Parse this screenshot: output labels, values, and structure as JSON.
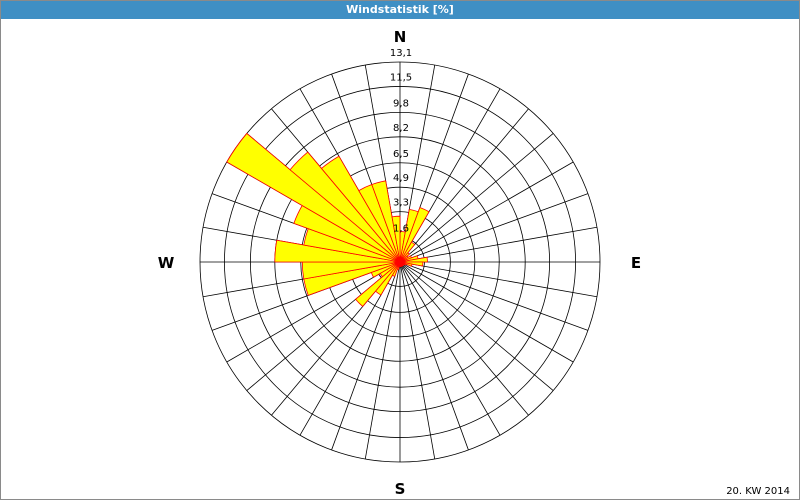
{
  "chart_data": {
    "type": "windrose",
    "title": "Windstatistik [%]",
    "footer": "20. KW 2014",
    "direction_labels": [
      "N",
      "E",
      "S",
      "W"
    ],
    "categories": [
      null,
      null,
      null,
      null,
      null,
      null,
      null,
      null,
      null,
      null,
      null,
      null,
      null,
      null,
      null,
      null,
      null,
      null,
      null,
      null,
      null,
      null,
      null,
      null,
      null,
      null,
      null,
      null,
      null,
      null,
      null,
      null,
      null,
      null,
      null,
      null
    ],
    "values": [
      2.0,
      3.5,
      3.8,
      1.5,
      0.8,
      0.6,
      0.8,
      1.2,
      1.8,
      1.5,
      0.8,
      0.4,
      0.3,
      0.3,
      0.3,
      0.3,
      0.3,
      0.3,
      0.3,
      0.5,
      1.0,
      2.5,
      3.8,
      1.5,
      2.0,
      6.4,
      6.4,
      8.2,
      6.4,
      7.4,
      13.1,
      9.4,
      8.0,
      5.4,
      5.4,
      3.0
    ],
    "color": "#ffff00",
    "edge_color": "#ff0000",
    "rlim": [
      0,
      13.1
    ],
    "rticks": [
      {
        "value": 1.6,
        "label": "1,6"
      },
      {
        "value": 3.3,
        "label": "3,3"
      },
      {
        "value": 4.9,
        "label": "4,9"
      },
      {
        "value": 6.5,
        "label": "6,5"
      },
      {
        "value": 8.2,
        "label": "8,2"
      },
      {
        "value": 9.8,
        "label": "9,8"
      },
      {
        "value": 11.5,
        "label": "11,5"
      },
      {
        "value": 13.1,
        "label": "13,1"
      }
    ]
  }
}
